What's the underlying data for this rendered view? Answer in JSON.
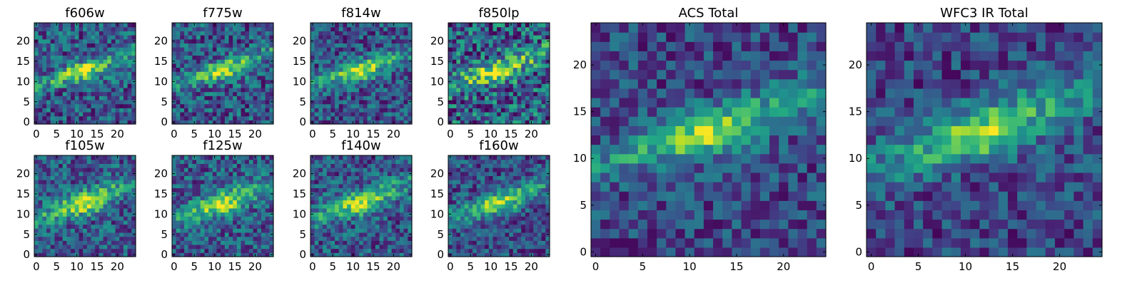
{
  "chart_data": [
    {
      "type": "heatmap",
      "title": "f606w",
      "xticks": [
        "0",
        "5",
        "10",
        "15",
        "20"
      ],
      "yticks": [
        "0",
        "5",
        "10",
        "15",
        "20"
      ],
      "xlim": [
        0,
        25
      ],
      "ylim": [
        0,
        25
      ]
    },
    {
      "type": "heatmap",
      "title": "f775w",
      "xticks": [
        "0",
        "5",
        "10",
        "15",
        "20"
      ],
      "yticks": [
        "0",
        "5",
        "10",
        "15",
        "20"
      ],
      "xlim": [
        0,
        25
      ],
      "ylim": [
        0,
        25
      ]
    },
    {
      "type": "heatmap",
      "title": "f814w",
      "xticks": [
        "0",
        "5",
        "10",
        "15",
        "20"
      ],
      "yticks": [
        "0",
        "5",
        "10",
        "15",
        "20"
      ],
      "xlim": [
        0,
        25
      ],
      "ylim": [
        0,
        25
      ]
    },
    {
      "type": "heatmap",
      "title": "f850lp",
      "xticks": [
        "0",
        "5",
        "10",
        "15",
        "20"
      ],
      "yticks": [
        "0",
        "5",
        "10",
        "15",
        "20"
      ],
      "xlim": [
        0,
        25
      ],
      "ylim": [
        0,
        25
      ]
    },
    {
      "type": "heatmap",
      "title": "f105w",
      "xticks": [
        "0",
        "5",
        "10",
        "15",
        "20"
      ],
      "yticks": [
        "0",
        "5",
        "10",
        "15",
        "20"
      ],
      "xlim": [
        0,
        25
      ],
      "ylim": [
        0,
        25
      ]
    },
    {
      "type": "heatmap",
      "title": "f125w",
      "xticks": [
        "0",
        "5",
        "10",
        "15",
        "20"
      ],
      "yticks": [
        "0",
        "5",
        "10",
        "15",
        "20"
      ],
      "xlim": [
        0,
        25
      ],
      "ylim": [
        0,
        25
      ]
    },
    {
      "type": "heatmap",
      "title": "f140w",
      "xticks": [
        "0",
        "5",
        "10",
        "15",
        "20"
      ],
      "yticks": [
        "0",
        "5",
        "10",
        "15",
        "20"
      ],
      "xlim": [
        0,
        25
      ],
      "ylim": [
        0,
        25
      ]
    },
    {
      "type": "heatmap",
      "title": "f160w",
      "xticks": [
        "0",
        "5",
        "10",
        "15",
        "20"
      ],
      "yticks": [
        "0",
        "5",
        "10",
        "15",
        "20"
      ],
      "xlim": [
        0,
        25
      ],
      "ylim": [
        0,
        25
      ]
    },
    {
      "type": "heatmap",
      "title": "ACS Total",
      "xticks": [
        "0",
        "5",
        "10",
        "15",
        "20"
      ],
      "yticks": [
        "0",
        "5",
        "10",
        "15",
        "20"
      ],
      "xlim": [
        0,
        25
      ],
      "ylim": [
        0,
        25
      ]
    },
    {
      "type": "heatmap",
      "title": "WFC3 IR Total",
      "xticks": [
        "0",
        "5",
        "10",
        "15",
        "20"
      ],
      "yticks": [
        "0",
        "5",
        "10",
        "15",
        "20"
      ],
      "xlim": [
        0,
        25
      ],
      "ylim": [
        0,
        25
      ]
    }
  ],
  "colormap": "viridis"
}
